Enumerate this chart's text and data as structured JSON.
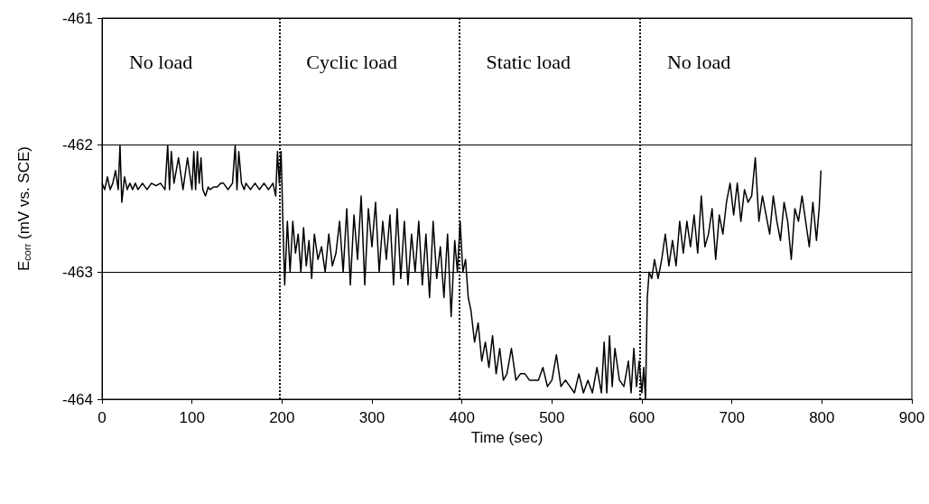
{
  "chart_data": {
    "type": "line",
    "xlabel": "Time (sec)",
    "ylabel": "E$_{corr}$ (mV vs. SCE)",
    "xlim": [
      0,
      900
    ],
    "xticks": [
      0,
      100,
      200,
      300,
      400,
      500,
      600,
      700,
      800,
      900
    ],
    "ylim": [
      -464,
      -461
    ],
    "yticks": [
      -464,
      -463,
      -462,
      -461
    ],
    "grid": "y",
    "marker": "none",
    "line_style": "solid",
    "series": [
      {
        "color": "#000000",
        "x": [
          0,
          3,
          6,
          9,
          12,
          15,
          18,
          20,
          22,
          25,
          28,
          31,
          34,
          37,
          40,
          45,
          50,
          55,
          60,
          65,
          70,
          73,
          75,
          77,
          80,
          85,
          90,
          95,
          100,
          102,
          104,
          106,
          108,
          110,
          112,
          115,
          118,
          120,
          124,
          128,
          132,
          135,
          140,
          145,
          148,
          150,
          152,
          155,
          158,
          160,
          165,
          170,
          175,
          180,
          185,
          190,
          193,
          195,
          197,
          199,
          201,
          203,
          206,
          209,
          212,
          215,
          218,
          221,
          224,
          227,
          230,
          233,
          236,
          240,
          244,
          248,
          252,
          256,
          260,
          264,
          268,
          272,
          276,
          280,
          284,
          288,
          292,
          296,
          300,
          304,
          308,
          312,
          316,
          320,
          324,
          328,
          332,
          336,
          340,
          344,
          348,
          352,
          356,
          360,
          364,
          368,
          372,
          376,
          380,
          384,
          388,
          392,
          395,
          398,
          401,
          404,
          407,
          410,
          414,
          418,
          422,
          426,
          430,
          434,
          438,
          442,
          446,
          450,
          455,
          460,
          465,
          470,
          475,
          480,
          485,
          490,
          495,
          500,
          505,
          510,
          515,
          520,
          525,
          530,
          535,
          540,
          545,
          550,
          555,
          558,
          561,
          564,
          567,
          570,
          575,
          580,
          585,
          588,
          591,
          594,
          597,
          600,
          602,
          604,
          606,
          608,
          611,
          614,
          618,
          622,
          626,
          630,
          634,
          638,
          642,
          646,
          650,
          654,
          658,
          662,
          666,
          670,
          674,
          678,
          682,
          686,
          690,
          694,
          698,
          702,
          706,
          710,
          714,
          718,
          722,
          726,
          730,
          734,
          738,
          742,
          746,
          750,
          754,
          758,
          762,
          766,
          770,
          774,
          778,
          782,
          786,
          790,
          794,
          797,
          799
        ],
        "values": [
          -462.3,
          -462.35,
          -462.25,
          -462.35,
          -462.3,
          -462.2,
          -462.35,
          -462.0,
          -462.45,
          -462.25,
          -462.35,
          -462.3,
          -462.35,
          -462.3,
          -462.35,
          -462.3,
          -462.35,
          -462.3,
          -462.32,
          -462.3,
          -462.35,
          -462.0,
          -462.35,
          -462.05,
          -462.3,
          -462.1,
          -462.35,
          -462.1,
          -462.35,
          -462.05,
          -462.35,
          -462.05,
          -462.3,
          -462.1,
          -462.35,
          -462.4,
          -462.33,
          -462.35,
          -462.33,
          -462.33,
          -462.3,
          -462.3,
          -462.35,
          -462.3,
          -462.0,
          -462.35,
          -462.05,
          -462.3,
          -462.35,
          -462.3,
          -462.35,
          -462.3,
          -462.35,
          -462.3,
          -462.35,
          -462.3,
          -462.4,
          -462.05,
          -462.3,
          -462.05,
          -462.6,
          -463.1,
          -462.6,
          -463.0,
          -462.6,
          -462.85,
          -462.7,
          -463.0,
          -462.65,
          -462.95,
          -462.75,
          -463.05,
          -462.7,
          -462.9,
          -462.8,
          -463.0,
          -462.7,
          -462.95,
          -462.85,
          -462.6,
          -463.0,
          -462.5,
          -463.1,
          -462.55,
          -462.9,
          -462.4,
          -463.1,
          -462.5,
          -462.8,
          -462.45,
          -463.0,
          -462.6,
          -462.9,
          -462.55,
          -463.1,
          -462.5,
          -463.05,
          -462.6,
          -463.1,
          -462.7,
          -463.0,
          -462.6,
          -463.1,
          -462.7,
          -463.2,
          -462.6,
          -463.05,
          -462.8,
          -463.2,
          -462.7,
          -463.35,
          -462.75,
          -463.0,
          -462.6,
          -463.0,
          -462.9,
          -463.2,
          -463.3,
          -463.55,
          -463.4,
          -463.7,
          -463.55,
          -463.75,
          -463.5,
          -463.8,
          -463.6,
          -463.85,
          -463.8,
          -463.6,
          -463.85,
          -463.8,
          -463.8,
          -463.85,
          -463.85,
          -463.85,
          -463.75,
          -463.9,
          -463.85,
          -463.65,
          -463.9,
          -463.85,
          -463.9,
          -463.95,
          -463.8,
          -463.95,
          -463.85,
          -463.95,
          -463.75,
          -463.95,
          -463.55,
          -463.95,
          -463.5,
          -463.9,
          -463.6,
          -463.85,
          -463.9,
          -463.7,
          -463.95,
          -463.6,
          -463.9,
          -463.7,
          -463.95,
          -463.75,
          -464.0,
          -463.2,
          -463.0,
          -463.05,
          -462.9,
          -463.05,
          -462.9,
          -462.7,
          -462.95,
          -462.75,
          -462.95,
          -462.6,
          -462.85,
          -462.6,
          -462.8,
          -462.55,
          -462.85,
          -462.4,
          -462.8,
          -462.7,
          -462.5,
          -462.9,
          -462.55,
          -462.7,
          -462.45,
          -462.3,
          -462.55,
          -462.3,
          -462.6,
          -462.35,
          -462.45,
          -462.4,
          -462.1,
          -462.6,
          -462.4,
          -462.55,
          -462.7,
          -462.4,
          -462.6,
          -462.75,
          -462.45,
          -462.6,
          -462.9,
          -462.5,
          -462.6,
          -462.4,
          -462.6,
          -462.8,
          -462.45,
          -462.75,
          -462.5,
          -462.2
        ]
      }
    ],
    "ref_lines": [
      {
        "axis": "x",
        "value": 197,
        "label": null,
        "line_style": "dotted"
      },
      {
        "axis": "x",
        "value": 397,
        "label": null,
        "line_style": "dotted"
      },
      {
        "axis": "x",
        "value": 598,
        "label": null,
        "line_style": "dotted"
      }
    ],
    "annotations": [
      "No load",
      "Cyclic load",
      "Static load",
      "No load"
    ]
  }
}
